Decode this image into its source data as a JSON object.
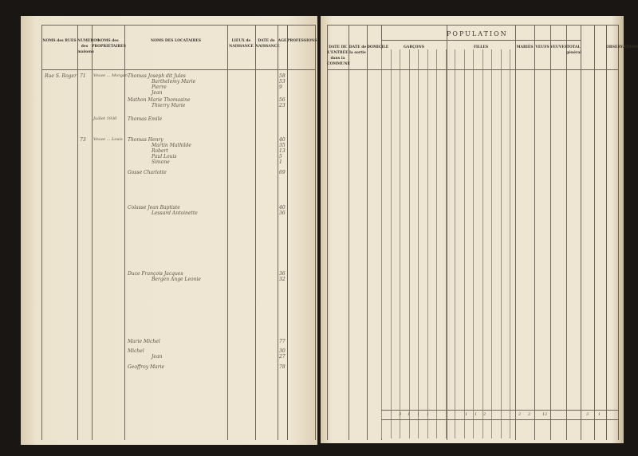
{
  "left_headers": {
    "rues": "NOMS des RUES",
    "numeros": "NUMÉROS des maisons",
    "proprietaires": "NOMS des PROPRIÉTAIRES",
    "locataires": "NOMS DES LOCATAIRES",
    "lieux": "LIEUX de NAISSANCE",
    "date": "DATE de NAISSANCE",
    "age": "AGE",
    "professions": "PROFESSIONS"
  },
  "right_headers": {
    "entree": "DATE DE L'ENTRÉE dans la COMMUNE",
    "sortie": "DATE de la sortie",
    "domicile": "DOMICILE",
    "population": "POPULATION",
    "garcons": "GARÇONS",
    "filles": "FILLES",
    "maries": "MARIÉS",
    "veufs": "VEUFS",
    "veuves": "VEUVES",
    "total": "TOTAL",
    "total_general": "TOTAL général",
    "observations": "OBSERVATIONS"
  },
  "entries": [
    {
      "rue": "Rue S. Roger",
      "num": "71",
      "prop": "Veuve ... Morgan",
      "names": [
        "Thomas Joseph dit Jules",
        "Barthelemy Marie",
        "Pierre",
        "Jean"
      ],
      "ages": [
        "58",
        "53",
        "9"
      ]
    },
    {
      "names": [
        "Mathon Marie Thomasine",
        "Thierry Marie"
      ],
      "ages": [
        "56",
        "23"
      ]
    },
    {
      "prop": "Juillet 1930",
      "names": [
        "Thomas Emile"
      ]
    },
    {
      "rue": "",
      "num": "73",
      "prop": "Veuve ... Louis",
      "names": [
        "Thomas Henry",
        "Martin Mathilde",
        "Robert",
        "Paul Louis",
        "Simone"
      ],
      "ages": [
        "40",
        "35",
        "13",
        "5",
        "1"
      ]
    },
    {
      "names": [
        "Gosse Charlotte"
      ],
      "ages": [
        "69"
      ]
    },
    {
      "names": [
        "Colasse Jean Baptiste",
        "Lessard Antoinette"
      ],
      "ages": [
        "40",
        "36"
      ]
    },
    {
      "names": [
        "Duce François Jacques",
        "Bergen Ange Leonie"
      ],
      "ages": [
        "36",
        "32"
      ]
    },
    {
      "names": [
        "Marie Michel"
      ],
      "ages": [
        "77"
      ]
    },
    {
      "names": [
        "Michel",
        "Jean"
      ],
      "ages": [
        "30",
        "27"
      ]
    },
    {
      "names": [
        "Geoffroy Marie"
      ],
      "ages": [
        "78"
      ]
    }
  ],
  "totals": [
    "3",
    "1",
    "1",
    "1",
    "1",
    "1",
    "2",
    "2",
    "2",
    "12",
    "3",
    "1"
  ]
}
